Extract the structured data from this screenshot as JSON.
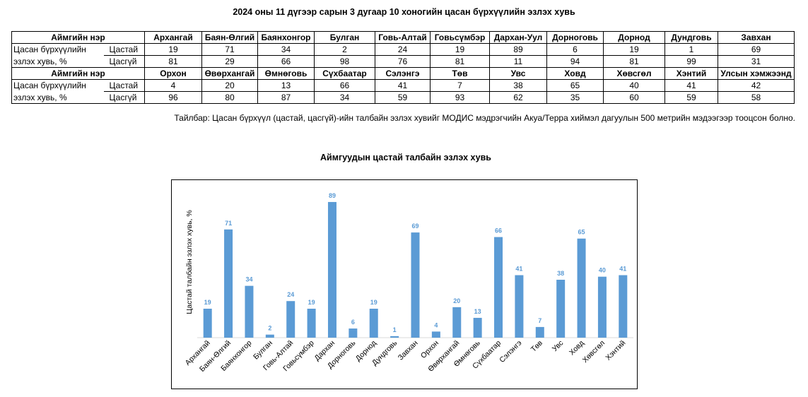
{
  "title": "2024 оны 11 дүгээр сарын 3 дугаар 10 хоногийн цасан бүрхүүлийн эзлэх хувь",
  "table": {
    "header_label": "Аймгийн нэр",
    "row_label_line1": "Цасан бүрхүүлийн",
    "row_label_line2": "эзлэх хувь, %",
    "sub_snow": "Цастай",
    "sub_nosnow": "Цасгүй",
    "block1": {
      "names": [
        "Архангай",
        "Баян-Өлгий",
        "Баянхонгор",
        "Булган",
        "Говь-Алтай",
        "Говьсүмбэр",
        "Дархан-Уул",
        "Дорноговь",
        "Дорнод",
        "Дундговь",
        "Завхан"
      ],
      "snow": [
        "19",
        "71",
        "34",
        "2",
        "24",
        "19",
        "89",
        "6",
        "19",
        "1",
        "69"
      ],
      "nosnow": [
        "81",
        "29",
        "66",
        "98",
        "76",
        "81",
        "11",
        "94",
        "81",
        "99",
        "31"
      ]
    },
    "block2": {
      "names": [
        "Орхон",
        "Өвөрхангай",
        "Өмнөговь",
        "Сүхбаатар",
        "Сэлэнгэ",
        "Төв",
        "Увс",
        "Ховд",
        "Хөвсгөл",
        "Хэнтий",
        "Улсын хэмжээнд"
      ],
      "snow": [
        "4",
        "20",
        "13",
        "66",
        "41",
        "7",
        "38",
        "65",
        "40",
        "41",
        "42"
      ],
      "nosnow": [
        "96",
        "80",
        "87",
        "34",
        "59",
        "93",
        "62",
        "35",
        "60",
        "59",
        "58"
      ]
    }
  },
  "note": "Тайлбар: Цасан бүрхүүл (цастай, цасгүй)-ийн талбайн эзлэх хувийг МОДИС мэдрэгчийн Акуа/Терра хиймэл дагуулын 500 метрийн мэдээгээр тооцсон болно.",
  "chart_data": {
    "type": "bar",
    "title": "Аймгуудын цастай талбайн эзлэх хувь",
    "ylabel": "Цастай талбайн эзлэх хувь, %",
    "xlabel": "",
    "categories": [
      "Архангай",
      "Баян-Өлгий",
      "Баянхонгор",
      "Булган",
      "Говь-Алтай",
      "Говьсүмбэр",
      "Дархан",
      "Дорноговь",
      "Дорнод",
      "Дундговь",
      "Завхан",
      "Орхон",
      "Өвөрхангай",
      "Өмнөговь",
      "Сүхбаатар",
      "Сэлэнгэ",
      "Төв",
      "Увс",
      "Ховд",
      "Хөвсгөл",
      "Хэнтий"
    ],
    "values": [
      19,
      71,
      34,
      2,
      24,
      19,
      89,
      6,
      19,
      1,
      69,
      4,
      20,
      13,
      66,
      41,
      7,
      38,
      65,
      40,
      41
    ],
    "ylim": [
      0,
      95
    ],
    "grid": false,
    "legend": "none",
    "data_labels": true,
    "bar_color": "#5b9bd5",
    "label_color": "#5b9bd5"
  }
}
